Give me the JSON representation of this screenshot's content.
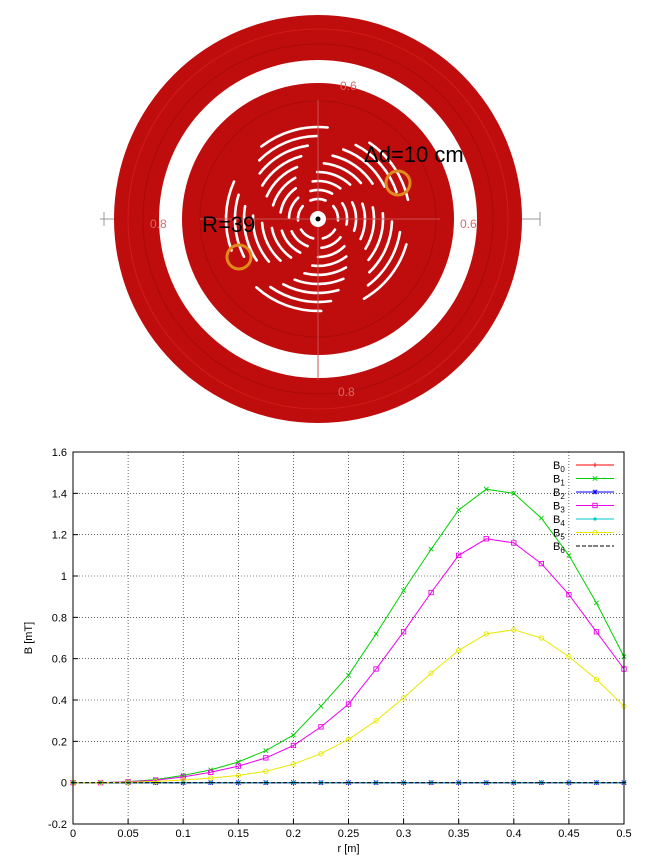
{
  "geometry_figure": {
    "annotations": {
      "spacing": "Δd=10 cm",
      "radius": "R=39"
    },
    "tick_labels": [
      "0.6",
      "0.8",
      "0.6",
      "0.8"
    ],
    "colors": {
      "disk": "#bf0d0d",
      "marker": "#e08a1e",
      "slot": "#ffffff"
    }
  },
  "chart_data": {
    "type": "line",
    "xlabel": "r [m]",
    "ylabel": "B [mT]",
    "xlim": [
      0,
      0.5
    ],
    "ylim": [
      -0.2,
      1.6
    ],
    "x_ticks": [
      "0",
      "0.05",
      "0.1",
      "0.15",
      "0.2",
      "0.25",
      "0.3",
      "0.35",
      "0.4",
      "0.45",
      "0.5"
    ],
    "y_ticks": [
      "-0.2",
      "0",
      "0.2",
      "0.4",
      "0.6",
      "0.8",
      "1",
      "1.2",
      "1.4",
      "1.6"
    ],
    "grid": true,
    "legend_position": "top-right",
    "x": [
      0,
      0.025,
      0.05,
      0.075,
      0.1,
      0.125,
      0.15,
      0.175,
      0.2,
      0.225,
      0.25,
      0.275,
      0.3,
      0.325,
      0.35,
      0.375,
      0.4,
      0.425,
      0.45,
      0.475,
      0.5
    ],
    "series": [
      {
        "name": "B",
        "sub": "0",
        "color": "#ff0000",
        "marker": "plus",
        "values": [
          0,
          0,
          0,
          0,
          0,
          0,
          0,
          0,
          0,
          0,
          0,
          0,
          0,
          0,
          0,
          0,
          0,
          0,
          0,
          0,
          0
        ]
      },
      {
        "name": "B",
        "sub": "1",
        "color": "#00d000",
        "marker": "x",
        "values": [
          0,
          0,
          0.005,
          0.015,
          0.035,
          0.062,
          0.1,
          0.155,
          0.23,
          0.37,
          0.52,
          0.72,
          0.93,
          1.13,
          1.32,
          1.42,
          1.4,
          1.28,
          1.1,
          0.87,
          0.61
        ]
      },
      {
        "name": "B",
        "sub": "2",
        "color": "#0000ff",
        "marker": "star",
        "values": [
          0,
          0,
          0,
          0,
          0,
          0,
          0,
          0,
          0,
          0,
          0,
          0,
          0,
          0,
          0,
          0,
          0,
          0,
          0,
          0,
          0
        ]
      },
      {
        "name": "B",
        "sub": "3",
        "color": "#ee00ee",
        "marker": "square",
        "values": [
          0,
          0,
          0.004,
          0.012,
          0.028,
          0.05,
          0.08,
          0.12,
          0.18,
          0.27,
          0.38,
          0.55,
          0.73,
          0.92,
          1.1,
          1.18,
          1.16,
          1.06,
          0.91,
          0.73,
          0.55
        ]
      },
      {
        "name": "B",
        "sub": "4",
        "color": "#00c8c8",
        "marker": "dot",
        "values": [
          0,
          0,
          0,
          0,
          0,
          0,
          0,
          0,
          0,
          0,
          0,
          0,
          0,
          0,
          0,
          0,
          0,
          0,
          0,
          0,
          0
        ]
      },
      {
        "name": "B",
        "sub": "5",
        "color": "#e8e800",
        "marker": "circle",
        "values": [
          0,
          0,
          0.002,
          0.006,
          0.013,
          0.022,
          0.035,
          0.055,
          0.09,
          0.14,
          0.21,
          0.3,
          0.41,
          0.53,
          0.64,
          0.72,
          0.74,
          0.7,
          0.61,
          0.5,
          0.37
        ]
      },
      {
        "name": "B",
        "sub": "6",
        "color": "#000000",
        "marker": "dash",
        "values": [
          0,
          0,
          0,
          0,
          0,
          0,
          0,
          0,
          0,
          0,
          0,
          0,
          0,
          0,
          0,
          0,
          0,
          0,
          0,
          0,
          0
        ]
      }
    ]
  }
}
